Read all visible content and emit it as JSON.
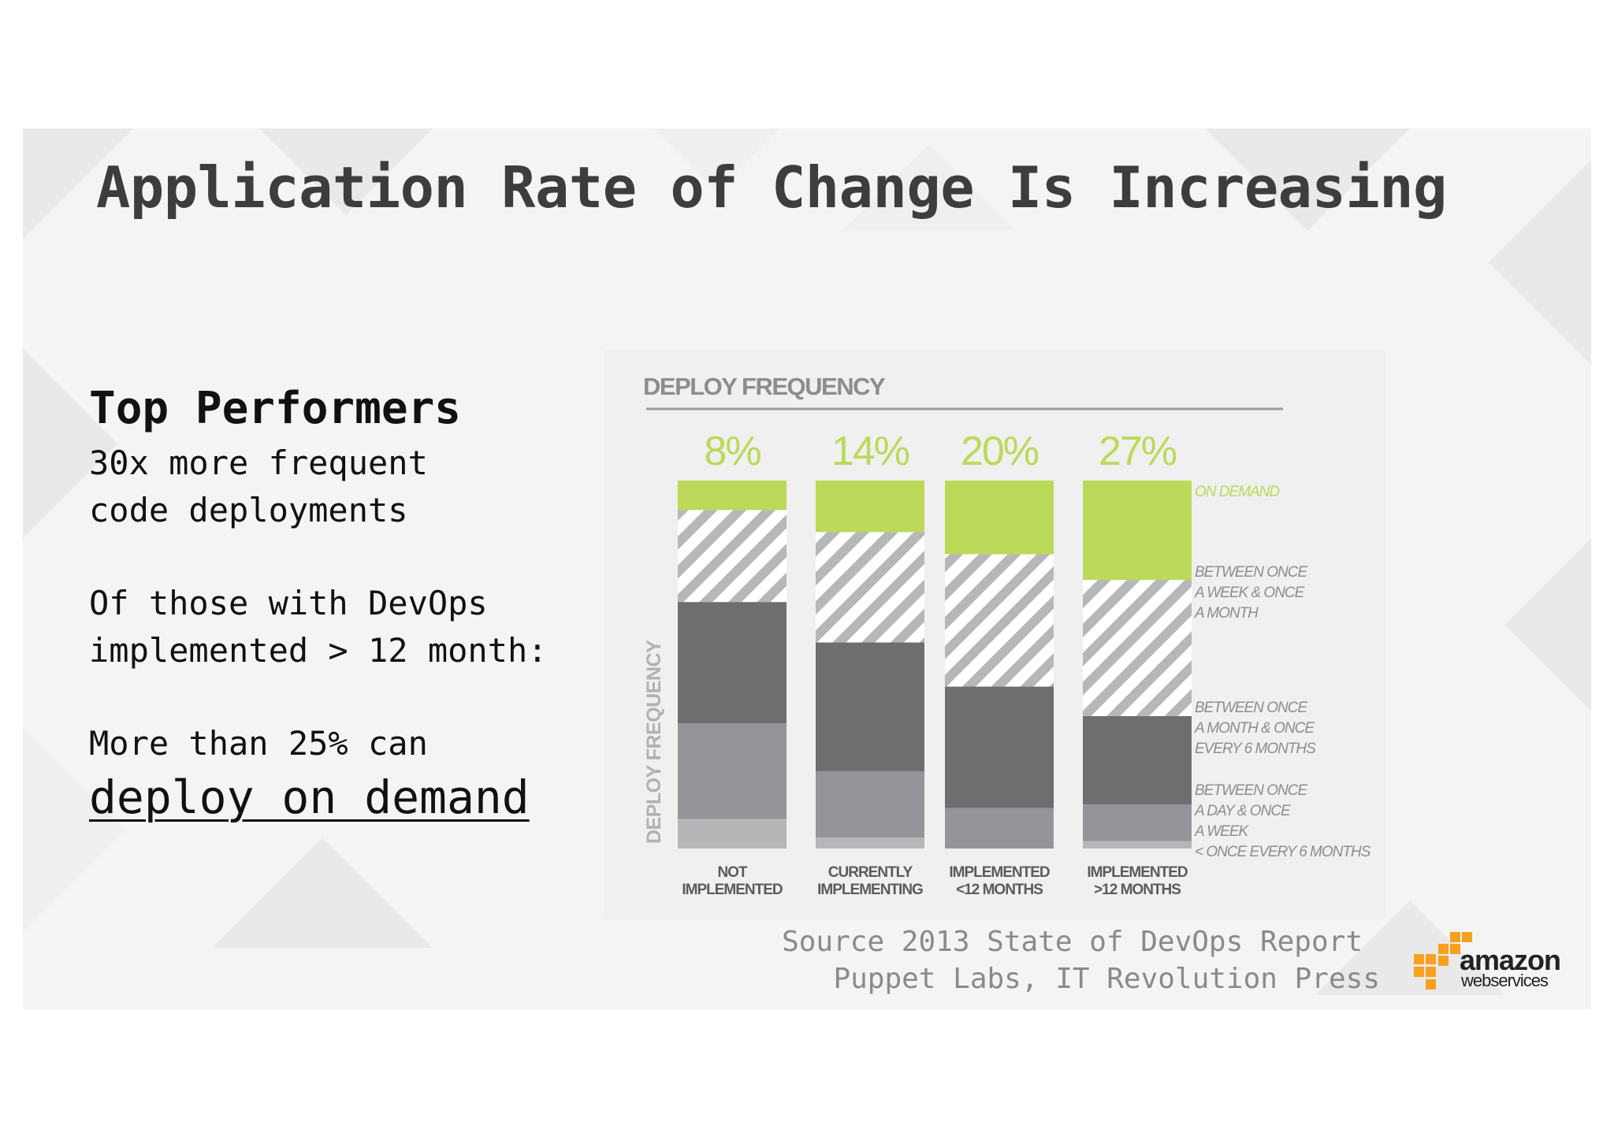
{
  "slide": {
    "title": "Application Rate of Change Is Increasing"
  },
  "left_text": {
    "heading": "Top Performers",
    "line1": "30x more frequent",
    "line2": "code deployments",
    "line3": "Of those with DevOps",
    "line4": "implemented > 12 month:",
    "line5": "More than 25% can",
    "line6": "deploy on demand"
  },
  "source": {
    "line1": "Source 2013 State of DevOps Report",
    "line2": "Puppet Labs, IT Revolution Press"
  },
  "logo": {
    "brand": "amazon",
    "sub": "webservices",
    "color": "#f7a11c"
  },
  "colors": {
    "accent_green": "#bcd95a",
    "dark_gray": "#6d6e70",
    "mid_gray": "#939598",
    "light_gray": "#b5b6b8",
    "label_gray": "#9a9b9d",
    "axis_gray": "#8c8d8f"
  },
  "chart_data": {
    "type": "bar",
    "stacked": true,
    "title": "DEPLOY FREQUENCY",
    "ylabel": "DEPLOY FREQUENCY",
    "xlabel": "",
    "ylim": [
      0,
      100
    ],
    "categories": [
      [
        "NOT",
        "IMPLEMENTED"
      ],
      [
        "CURRENTLY",
        "IMPLEMENTING"
      ],
      [
        "IMPLEMENTED",
        "<12 MONTHS"
      ],
      [
        "IMPLEMENTED",
        ">12 MONTHS"
      ]
    ],
    "top_labels": [
      "8%",
      "14%",
      "20%",
      "27%"
    ],
    "series": [
      {
        "name": "< ONCE EVERY 6 MONTHS",
        "legend_lines": [
          "< ONCE EVERY 6 MONTHS"
        ],
        "style": "light",
        "values": [
          8,
          3,
          0,
          2
        ]
      },
      {
        "name": "BETWEEN ONCE A DAY & ONCE A WEEK",
        "legend_lines": [
          "BETWEEN ONCE",
          "A DAY & ONCE",
          "A WEEK"
        ],
        "style": "mid",
        "values": [
          26,
          18,
          11,
          10
        ]
      },
      {
        "name": "BETWEEN ONCE A MONTH & ONCE EVERY 6 MONTHS",
        "legend_lines": [
          "BETWEEN ONCE",
          "A MONTH & ONCE",
          "EVERY 6 MONTHS"
        ],
        "style": "dark",
        "values": [
          33,
          35,
          33,
          24
        ]
      },
      {
        "name": "BETWEEN ONCE A WEEK & ONCE A MONTH",
        "legend_lines": [
          "BETWEEN ONCE",
          "A WEEK & ONCE",
          "A MONTH"
        ],
        "style": "hatch",
        "values": [
          25,
          30,
          36,
          37
        ]
      },
      {
        "name": "ON DEMAND",
        "legend_lines": [
          "ON DEMAND"
        ],
        "style": "green",
        "values": [
          8,
          14,
          20,
          27
        ]
      }
    ],
    "legend_position": "right"
  }
}
